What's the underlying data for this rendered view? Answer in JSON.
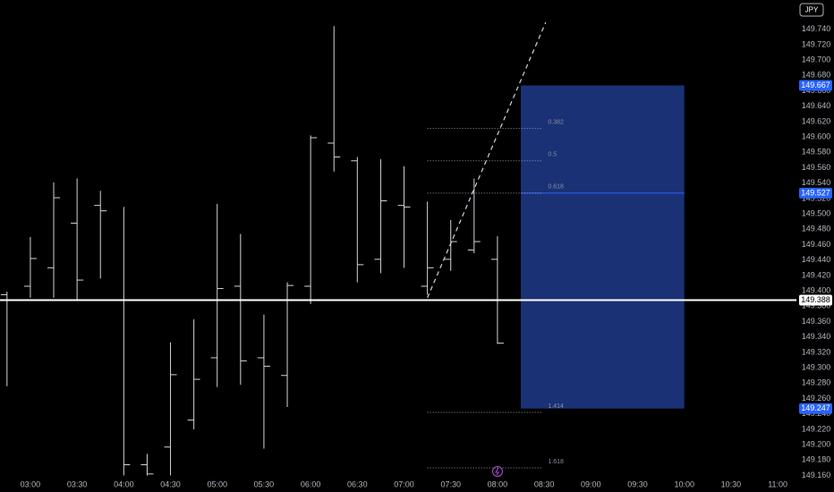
{
  "chart_data": {
    "type": "ohlc",
    "currency": "JPY",
    "x": [
      165,
      180,
      195,
      210,
      225,
      240,
      255,
      270,
      285,
      300,
      315,
      330,
      345,
      360,
      375,
      390,
      405,
      420,
      435,
      450,
      465,
      480
    ],
    "open": [
      149.395,
      149.406,
      149.43,
      149.488,
      149.511,
      149.388,
      149.174,
      149.197,
      149.232,
      149.313,
      149.406,
      149.313,
      149.29,
      149.406,
      149.592,
      149.569,
      149.441,
      149.511,
      149.406,
      149.441,
      149.453,
      149.441
    ],
    "high": [
      149.399,
      149.47,
      149.541,
      149.546,
      149.53,
      149.509,
      149.188,
      149.333,
      149.363,
      149.513,
      149.474,
      149.369,
      149.411,
      149.602,
      149.744,
      149.574,
      149.571,
      149.562,
      149.516,
      149.492,
      149.546,
      149.471
    ],
    "low": [
      149.276,
      149.391,
      149.391,
      149.388,
      149.416,
      149.16,
      149.16,
      149.16,
      149.22,
      149.275,
      149.278,
      149.195,
      149.249,
      149.383,
      149.555,
      149.411,
      149.423,
      149.43,
      149.395,
      149.426,
      149.449,
      149.331
    ],
    "close": [
      149.388,
      149.442,
      149.521,
      149.414,
      149.504,
      149.174,
      149.162,
      149.291,
      149.285,
      149.403,
      149.309,
      149.302,
      149.407,
      149.599,
      149.574,
      149.434,
      149.517,
      149.509,
      149.43,
      149.464,
      149.464,
      149.332
    ],
    "color": "#d1d4dc",
    "xlim": [
      160.5,
      672
    ],
    "xticks": [
      {
        "value": 180,
        "label": "03:00"
      },
      {
        "value": 210,
        "label": "03:30"
      },
      {
        "value": 240,
        "label": "04:00"
      },
      {
        "value": 270,
        "label": "04:30"
      },
      {
        "value": 300,
        "label": "05:00"
      },
      {
        "value": 330,
        "label": "05:30"
      },
      {
        "value": 360,
        "label": "06:00"
      },
      {
        "value": 390,
        "label": "06:30"
      },
      {
        "value": 420,
        "label": "07:00"
      },
      {
        "value": 450,
        "label": "07:30"
      },
      {
        "value": 480,
        "label": "08:00"
      },
      {
        "value": 510,
        "label": "08:30"
      },
      {
        "value": 540,
        "label": "09:00"
      },
      {
        "value": 570,
        "label": "09:30"
      },
      {
        "value": 600,
        "label": "10:00"
      },
      {
        "value": 630,
        "label": "10:30"
      },
      {
        "value": 660,
        "label": "11:00"
      }
    ],
    "ylim": [
      149.156,
      149.778
    ],
    "yticks": [
      {
        "value": 149.16,
        "label": "149.160"
      },
      {
        "value": 149.18,
        "label": "149.180"
      },
      {
        "value": 149.2,
        "label": "149.200"
      },
      {
        "value": 149.22,
        "label": "149.220"
      },
      {
        "value": 149.24,
        "label": "149.240"
      },
      {
        "value": 149.26,
        "label": "149.260"
      },
      {
        "value": 149.28,
        "label": "149.280"
      },
      {
        "value": 149.3,
        "label": "149.300"
      },
      {
        "value": 149.32,
        "label": "149.320"
      },
      {
        "value": 149.34,
        "label": "149.340"
      },
      {
        "value": 149.36,
        "label": "149.360"
      },
      {
        "value": 149.38,
        "label": "149.380"
      },
      {
        "value": 149.4,
        "label": "149.400"
      },
      {
        "value": 149.42,
        "label": "149.420"
      },
      {
        "value": 149.44,
        "label": "149.440"
      },
      {
        "value": 149.46,
        "label": "149.460"
      },
      {
        "value": 149.48,
        "label": "149.480"
      },
      {
        "value": 149.5,
        "label": "149.500"
      },
      {
        "value": 149.52,
        "label": "149.520"
      },
      {
        "value": 149.54,
        "label": "149.540"
      },
      {
        "value": 149.56,
        "label": "149.560"
      },
      {
        "value": 149.58,
        "label": "149.580"
      },
      {
        "value": 149.6,
        "label": "149.600"
      },
      {
        "value": 149.62,
        "label": "149.620"
      },
      {
        "value": 149.64,
        "label": "149.640"
      },
      {
        "value": 149.66,
        "label": "149.660"
      },
      {
        "value": 149.68,
        "label": "149.680"
      },
      {
        "value": 149.7,
        "label": "149.700"
      },
      {
        "value": 149.72,
        "label": "149.720"
      },
      {
        "value": 149.74,
        "label": "149.740"
      }
    ],
    "current_price": {
      "value": 149.388,
      "label": "149.388",
      "color": "#ffffff"
    },
    "box": {
      "x": [
        495,
        600
      ],
      "color": "#1e3a8a",
      "top": {
        "value": 149.667,
        "label": "149.667"
      },
      "mid": {
        "value": 149.527,
        "label": "149.527"
      },
      "bottom": {
        "value": 149.247,
        "label": "149.247"
      },
      "label_color": "#2962ff"
    },
    "fib_x": [
      435,
      509
    ],
    "fib_levels": [
      {
        "level": 0.382,
        "price": 149.611
      },
      {
        "level": 0.5,
        "price": 149.569
      },
      {
        "level": 0.618,
        "price": 149.527
      },
      {
        "level": 1.414,
        "price": 149.242
      },
      {
        "level": 1.618,
        "price": 149.17
      }
    ],
    "trendline": {
      "x": [
        435,
        511
      ],
      "y": [
        149.391,
        149.749
      ]
    }
  }
}
